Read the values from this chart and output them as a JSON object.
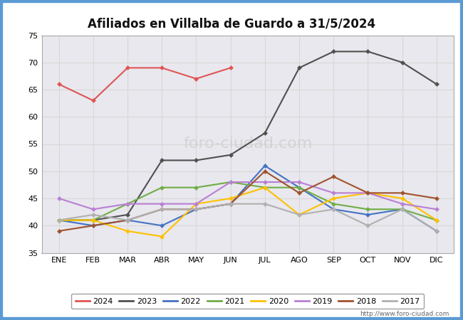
{
  "title": "Afiliados en Villalba de Guardo a 31/5/2024",
  "months": [
    "ENE",
    "FEB",
    "MAR",
    "ABR",
    "MAY",
    "JUN",
    "JUL",
    "AGO",
    "SEP",
    "OCT",
    "NOV",
    "DIC"
  ],
  "ylim": [
    35,
    75
  ],
  "yticks": [
    35,
    40,
    45,
    50,
    55,
    60,
    65,
    70,
    75
  ],
  "series": {
    "2024": {
      "color": "#e05555",
      "data": [
        66,
        63,
        69,
        69,
        67,
        69,
        null,
        null,
        null,
        null,
        null,
        null
      ]
    },
    "2023": {
      "color": "#505050",
      "data": [
        41,
        41,
        42,
        52,
        52,
        53,
        57,
        69,
        72,
        72,
        70,
        66
      ]
    },
    "2022": {
      "color": "#4472c4",
      "data": [
        41,
        40,
        41,
        40,
        43,
        44,
        51,
        47,
        43,
        42,
        43,
        39
      ]
    },
    "2021": {
      "color": "#70ad47",
      "data": [
        41,
        41,
        44,
        47,
        47,
        48,
        47,
        47,
        44,
        43,
        43,
        41
      ]
    },
    "2020": {
      "color": "#ffc000",
      "data": [
        41,
        41,
        39,
        38,
        44,
        45,
        47,
        42,
        45,
        46,
        45,
        41
      ]
    },
    "2019": {
      "color": "#b97fd4",
      "data": [
        45,
        43,
        44,
        44,
        44,
        48,
        48,
        48,
        46,
        46,
        44,
        43
      ]
    },
    "2018": {
      "color": "#a0522d",
      "data": [
        39,
        40,
        41,
        43,
        43,
        44,
        50,
        46,
        49,
        46,
        46,
        45
      ]
    },
    "2017": {
      "color": "#b0b0b0",
      "data": [
        41,
        42,
        41,
        43,
        43,
        44,
        44,
        42,
        43,
        40,
        43,
        39
      ]
    }
  },
  "legend_order": [
    "2024",
    "2023",
    "2022",
    "2021",
    "2020",
    "2019",
    "2018",
    "2017"
  ],
  "footer_url": "http://www.foro-ciudad.com",
  "grid_color": "#d8d8d8",
  "plot_bg": "#e8e8ee",
  "fig_bg": "#ffffff",
  "border_color": "#5b9bd5",
  "title_fontsize": 12,
  "line_width": 1.5,
  "marker_size": 3.5,
  "watermark_text": "foro-ciudad.com",
  "watermark_color": "#cccccc",
  "watermark_fontsize": 16
}
